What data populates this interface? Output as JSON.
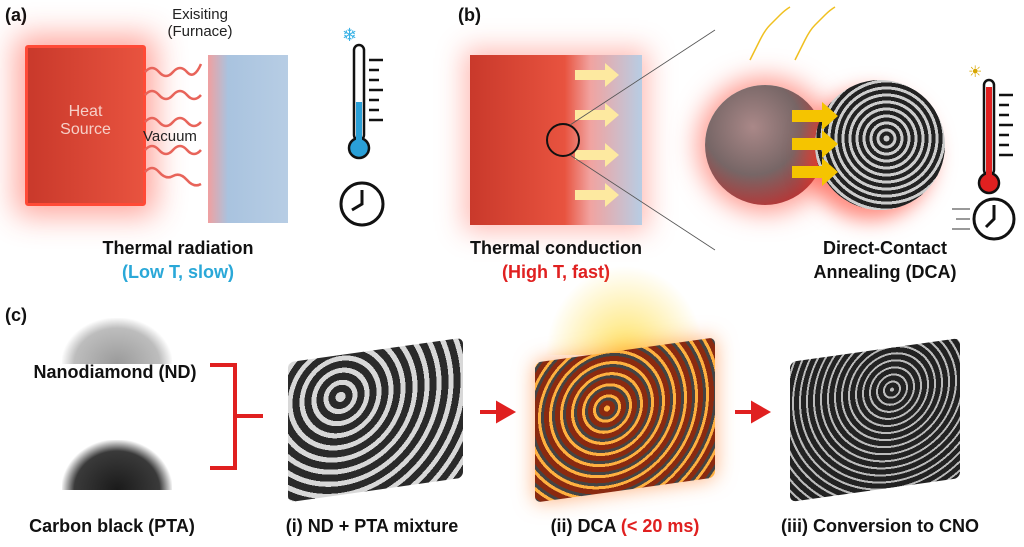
{
  "panel_a": {
    "label": "(a)",
    "existing": "Exisiting",
    "furnace": "(Furnace)",
    "heat_source_line1": "Heat",
    "heat_source_line2": "Source",
    "vacuum": "Vacuum",
    "title": "Thermal radiation",
    "subtitle": "(Low T, slow)",
    "subtitle_color": "#2aa8d8"
  },
  "panel_b": {
    "label": "(b)",
    "title": "Thermal conduction",
    "subtitle": "(High T, fast)",
    "subtitle_color": "#e02020",
    "dca_line1": "Direct-Contact",
    "dca_line2": "Annealing (DCA)"
  },
  "panel_c": {
    "label": "(c)",
    "nanodiamond": "Nanodiamond (ND)",
    "carbon_black": "Carbon black (PTA)",
    "step1": "(i) ND + PTA mixture",
    "step2": "(ii) DCA ",
    "step2_highlight": "(< 20 ms)",
    "step3": "(iii) Conversion to CNO",
    "arrow_color": "#e02020"
  },
  "icons": [
    "snowflake-icon",
    "thermometer-low-icon",
    "clock-icon",
    "sun-icon",
    "thermometer-high-icon",
    "fast-clock-icon"
  ]
}
